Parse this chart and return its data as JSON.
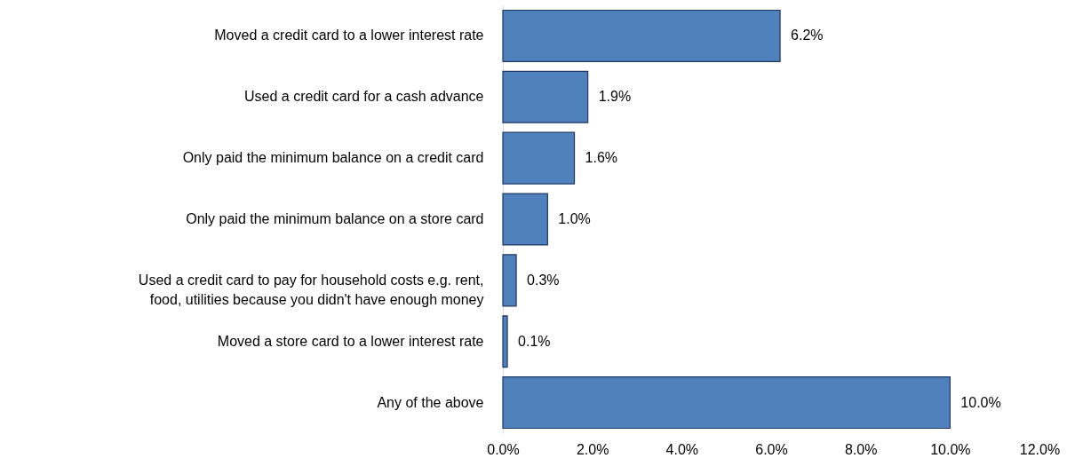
{
  "chart_data": {
    "type": "bar",
    "orientation": "horizontal",
    "categories": [
      "Moved a credit card to a lower interest rate",
      "Used a credit card for a cash advance",
      "Only paid the minimum balance on a credit card",
      "Only paid the minimum balance on a store card",
      "Used a credit card to pay for household costs e.g. rent, food, utilities because you didn't have enough money",
      "Moved a store card to a lower interest rate",
      "Any of the above"
    ],
    "values": [
      6.2,
      1.9,
      1.6,
      1.0,
      0.3,
      0.1,
      10.0
    ],
    "value_labels": [
      "6.2%",
      "1.9%",
      "1.6%",
      "1.0%",
      "0.3%",
      "0.1%",
      "10.0%"
    ],
    "color": "#4f81bd",
    "xlim": [
      0,
      12
    ],
    "xticks": [
      {
        "value": 0,
        "label": "0.0%"
      },
      {
        "value": 2,
        "label": "2.0%"
      },
      {
        "value": 4,
        "label": "4.0%"
      },
      {
        "value": 6,
        "label": "6.0%"
      },
      {
        "value": 8,
        "label": "8.0%"
      },
      {
        "value": 10,
        "label": "10.0%"
      },
      {
        "value": 12,
        "label": "12.0%"
      }
    ],
    "grid": false
  }
}
